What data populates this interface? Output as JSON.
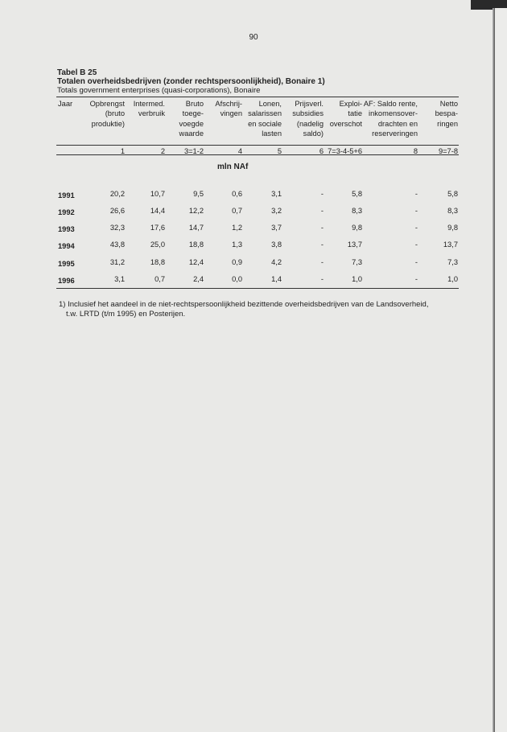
{
  "page_number": "90",
  "table": {
    "number": "Tabel B 25",
    "title": "Totalen overheidsbedrijven (zonder rechtspersoonlijkheid), Bonaire 1)",
    "subtitle": "Totals government enterprises (quasi-corporations), Bonaire",
    "headers": [
      "Jaar",
      "Opbrengst\n(bruto\nproduktie)",
      "Intermed.\nverbruik",
      "Bruto\ntoege-\nvoegde\nwaarde",
      "Afschrij-\nvingen",
      "Lonen,\nsalarissen\nen sociale\nlasten",
      "Prijsverl.\nsubsidies\n(nadelig\nsaldo)",
      "Exploi-\ntatie\noverschot",
      "AF: Saldo rente,\ninkomensover-\ndrachten en\nreserveringen",
      "Netto\nbespa-\nringen"
    ],
    "column_numbers": [
      "",
      "1",
      "2",
      "3=1-2",
      "4",
      "5",
      "6",
      "7=3-4-5+6",
      "8",
      "9=7-8"
    ],
    "unit": "mln NAf",
    "rows": [
      [
        "1991",
        "20,2",
        "10,7",
        "9,5",
        "0,6",
        "3,1",
        "-",
        "5,8",
        "-",
        "5,8"
      ],
      [
        "1992",
        "26,6",
        "14,4",
        "12,2",
        "0,7",
        "3,2",
        "-",
        "8,3",
        "-",
        "8,3"
      ],
      [
        "1993",
        "32,3",
        "17,6",
        "14,7",
        "1,2",
        "3,7",
        "-",
        "9,8",
        "-",
        "9,8"
      ],
      [
        "1994",
        "43,8",
        "25,0",
        "18,8",
        "1,3",
        "3,8",
        "-",
        "13,7",
        "-",
        "13,7"
      ],
      [
        "1995",
        "31,2",
        "18,8",
        "12,4",
        "0,9",
        "4,2",
        "-",
        "7,3",
        "-",
        "7,3"
      ],
      [
        "1996",
        "3,1",
        "0,7",
        "2,4",
        "0,0",
        "1,4",
        "-",
        "1,0",
        "-",
        "1,0"
      ]
    ],
    "footnote_line1": "1) Inclusief het aandeel in de niet-rechtspersoonlijkheid bezittende overheidsbedrijven van de Landsoverheid,",
    "footnote_line2": "t.w. LRTD (t/m 1995) en Posterijen."
  }
}
